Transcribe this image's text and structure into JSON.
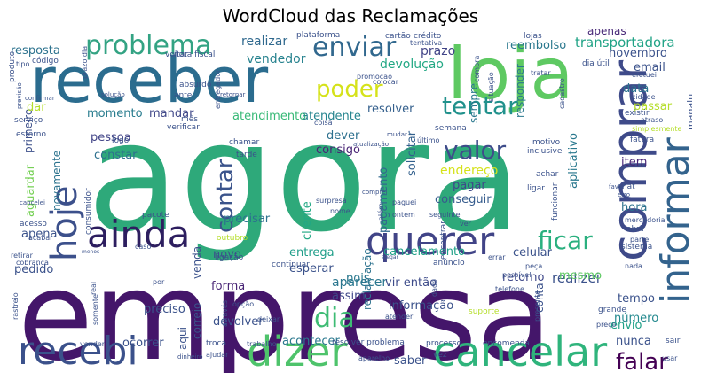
{
  "title": "WordCloud das Reclamações",
  "words": [
    {
      "text": "agora",
      "color": "#2ea97a"
    },
    {
      "text": "empresa",
      "color": "#44166a"
    },
    {
      "text": "receber",
      "color": "#2b6c8e"
    },
    {
      "text": "loja",
      "color": "#5ec962"
    },
    {
      "text": "comprar",
      "color": "#3e4a89"
    },
    {
      "text": "informar",
      "color": "#33638d"
    },
    {
      "text": "cancelar",
      "color": "#2fb47c"
    },
    {
      "text": "dizer",
      "color": "#4ec36b"
    },
    {
      "text": "recebi",
      "color": "#3b518b"
    },
    {
      "text": "querer",
      "color": "#414487"
    },
    {
      "text": "ainda",
      "color": "#2d1e5f"
    },
    {
      "text": "hoje",
      "color": "#3c508b"
    },
    {
      "text": "problema",
      "color": "#33a383"
    },
    {
      "text": "enviar",
      "color": "#31688e"
    },
    {
      "text": "poder",
      "color": "#d5e21a"
    },
    {
      "text": "tentar",
      "color": "#21918c"
    },
    {
      "text": "valor",
      "color": "#3e4c8a"
    },
    {
      "text": "contar",
      "color": "#3a538b"
    },
    {
      "text": "ficar",
      "color": "#2ab07f"
    },
    {
      "text": "dia",
      "color": "#3ebc74"
    },
    {
      "text": "falar",
      "color": "#440154"
    },
    {
      "text": "transportadora",
      "color": "#20a386"
    },
    {
      "text": "reembolso",
      "color": "#2a788e"
    },
    {
      "text": "realizar",
      "color": "#30698e"
    },
    {
      "text": "vendedor",
      "color": "#26828e"
    },
    {
      "text": "prazo",
      "color": "#414487"
    },
    {
      "text": "devolução",
      "color": "#22a884"
    },
    {
      "text": "resposta",
      "color": "#2c728e"
    },
    {
      "text": "apenas",
      "color": "#482878"
    },
    {
      "text": "atendimento",
      "color": "#38b977"
    },
    {
      "text": "atendente",
      "color": "#25848e"
    },
    {
      "text": "momento",
      "color": "#287c8e"
    },
    {
      "text": "mandar",
      "color": "#3f4788"
    },
    {
      "text": "primeiro",
      "color": "#3c4f8a"
    },
    {
      "text": "pessoa",
      "color": "#414487"
    },
    {
      "text": "constar",
      "color": "#2d708e"
    },
    {
      "text": "aguardar",
      "color": "#75d054"
    },
    {
      "text": "novamente",
      "color": "#2c738e"
    },
    {
      "text": "pedido",
      "color": "#3b528b"
    },
    {
      "text": "apena",
      "color": "#3b528b"
    },
    {
      "text": "resolver",
      "color": "#35608d"
    },
    {
      "text": "dever",
      "color": "#2d708e"
    },
    {
      "text": "consigo",
      "color": "#482475"
    },
    {
      "text": "pagamento",
      "color": "#31688e"
    },
    {
      "text": "cliente",
      "color": "#22a884"
    },
    {
      "text": "endereço",
      "color": "#d5e21a"
    },
    {
      "text": "pagar",
      "color": "#3e4989"
    },
    {
      "text": "conseguir",
      "color": "#365c8d"
    },
    {
      "text": "solicitar",
      "color": "#34618d"
    },
    {
      "text": "aplicativo",
      "color": "#2a788e"
    },
    {
      "text": "entrega",
      "color": "#1f9e89"
    },
    {
      "text": "esperar",
      "color": "#3b528b"
    },
    {
      "text": "aparecer",
      "color": "#2a768e"
    },
    {
      "text": "cancelamento",
      "color": "#1fa187"
    },
    {
      "text": "retorno",
      "color": "#3f4889"
    },
    {
      "text": "realizei",
      "color": "#3b528b"
    },
    {
      "text": "celular",
      "color": "#3b528b"
    },
    {
      "text": "item",
      "color": "#482677"
    },
    {
      "text": "hora",
      "color": "#2c728e"
    },
    {
      "text": "mesmo",
      "color": "#5ec962"
    },
    {
      "text": "tempo",
      "color": "#3b528b"
    },
    {
      "text": "número",
      "color": "#23898e"
    },
    {
      "text": "envio",
      "color": "#1fa187"
    },
    {
      "text": "nunca",
      "color": "#3b528b"
    },
    {
      "text": "vir então",
      "color": "#3e4c8a"
    },
    {
      "text": "pois",
      "color": "#2a788e"
    },
    {
      "text": "assim",
      "color": "#3f4788"
    },
    {
      "text": "informação",
      "color": "#3b528b"
    },
    {
      "text": "reclamação",
      "color": "#2c728e"
    },
    {
      "text": "forma",
      "color": "#482475"
    },
    {
      "text": "venda",
      "color": "#3b528b"
    },
    {
      "text": "devolver",
      "color": "#3b528b"
    },
    {
      "text": "preciso",
      "color": "#3b528b"
    },
    {
      "text": "correio",
      "color": "#3b528b"
    },
    {
      "text": "aqui",
      "color": "#3b528b"
    },
    {
      "text": "ocorrer",
      "color": "#3b528b"
    },
    {
      "text": "acontecer",
      "color": "#2a788e"
    },
    {
      "text": "saber",
      "color": "#3b528b"
    },
    {
      "text": "conta",
      "color": "#3b528b"
    },
    {
      "text": "precisar",
      "color": "#2c728e"
    },
    {
      "text": "novo",
      "color": "#3b528b"
    },
    {
      "text": "email",
      "color": "#3b528b"
    },
    {
      "text": "data",
      "color": "#2c728e"
    },
    {
      "text": "novembro",
      "color": "#3b528b"
    },
    {
      "text": "responder",
      "color": "#2a788e"
    },
    {
      "text": "passar",
      "color": "#b5de2b"
    },
    {
      "text": "sempre",
      "color": "#2a788e"
    },
    {
      "text": "dar",
      "color": "#b5de2b"
    },
    {
      "text": "magalu",
      "color": "#3b528b"
    },
    {
      "text": "semana",
      "color": "#3b528b"
    },
    {
      "text": "plataforma",
      "color": "#3b528b"
    },
    {
      "text": "cartão",
      "color": "#3b528b"
    },
    {
      "text": "crédito",
      "color": "#3b528b"
    },
    {
      "text": "código",
      "color": "#3b528b"
    },
    {
      "text": "absurdo",
      "color": "#3b528b"
    },
    {
      "text": "nota fiscal",
      "color": "#3b528b"
    },
    {
      "text": "produto",
      "color": "#3b528b"
    },
    {
      "text": "dia útil",
      "color": "#3b528b"
    },
    {
      "text": "lojas",
      "color": "#3b528b"
    },
    {
      "text": "tipo",
      "color": "#3b528b"
    },
    {
      "text": "voltar",
      "color": "#3b528b"
    },
    {
      "text": "entregador",
      "color": "#3b528b"
    },
    {
      "text": "promoção",
      "color": "#3b528b"
    },
    {
      "text": "colocar",
      "color": "#3b528b"
    },
    {
      "text": "tratar",
      "color": "#3b528b"
    },
    {
      "text": "situação",
      "color": "#3b528b"
    },
    {
      "text": "cadastro",
      "color": "#3b528b"
    },
    {
      "text": "efetuei",
      "color": "#3b528b"
    },
    {
      "text": "cidade",
      "color": "#3b528b"
    },
    {
      "text": "atraso",
      "color": "#3b528b"
    },
    {
      "text": "existir",
      "color": "#3b528b"
    },
    {
      "text": "simplesmente",
      "color": "#b5de2b"
    },
    {
      "text": "fatura",
      "color": "#3b528b"
    },
    {
      "text": "último",
      "color": "#3b528b"
    },
    {
      "text": "coisa",
      "color": "#3b528b"
    },
    {
      "text": "verificar",
      "color": "#3b528b"
    },
    {
      "text": "serviço",
      "color": "#3b528b"
    },
    {
      "text": "estorno",
      "color": "#3b528b"
    },
    {
      "text": "mês",
      "color": "#3b528b"
    },
    {
      "text": "logo",
      "color": "#3b528b"
    },
    {
      "text": "chamar",
      "color": "#3b528b"
    },
    {
      "text": "tarde",
      "color": "#3b528b"
    },
    {
      "text": "atualização",
      "color": "#3b528b"
    },
    {
      "text": "mudar",
      "color": "#3b528b"
    },
    {
      "text": "motivo",
      "color": "#3b528b"
    },
    {
      "text": "inclusive",
      "color": "#3b528b"
    },
    {
      "text": "achar",
      "color": "#3b528b"
    },
    {
      "text": "chat",
      "color": "#3b528b"
    },
    {
      "text": "favor",
      "color": "#3b528b"
    },
    {
      "text": "erro",
      "color": "#3b528b"
    },
    {
      "text": "abrir",
      "color": "#3b528b"
    },
    {
      "text": "parte",
      "color": "#3b528b"
    },
    {
      "text": "mercadoria",
      "color": "#3b528b"
    },
    {
      "text": "ligar",
      "color": "#3b528b"
    },
    {
      "text": "funcionar",
      "color": "#3b528b"
    },
    {
      "text": "surpresa",
      "color": "#3b528b"
    },
    {
      "text": "nome",
      "color": "#3b528b"
    },
    {
      "text": "pacote",
      "color": "#3b528b"
    },
    {
      "text": "consumidor",
      "color": "#3b528b"
    },
    {
      "text": "acesso",
      "color": "#3b528b"
    },
    {
      "text": "acabar",
      "color": "#3b528b"
    },
    {
      "text": "outubro",
      "color": "#b5de2b"
    },
    {
      "text": "ligação",
      "color": "#3b528b"
    },
    {
      "text": "continuar",
      "color": "#3b528b"
    },
    {
      "text": "paguei",
      "color": "#3b528b"
    },
    {
      "text": "ontem",
      "color": "#3b528b"
    },
    {
      "text": "seguinte",
      "color": "#3b528b"
    },
    {
      "text": "além",
      "color": "#3b528b"
    },
    {
      "text": "ver",
      "color": "#3b528b"
    },
    {
      "text": "cobrança",
      "color": "#3b528b"
    },
    {
      "text": "retirar",
      "color": "#3b528b"
    },
    {
      "text": "menos",
      "color": "#3b528b"
    },
    {
      "text": "rastreio",
      "color": "#3b528b"
    },
    {
      "text": "real",
      "color": "#3b528b"
    },
    {
      "text": "somente",
      "color": "#3b528b"
    },
    {
      "text": "através",
      "color": "#3b528b"
    },
    {
      "text": "opção",
      "color": "#3b528b"
    },
    {
      "text": "deixar",
      "color": "#3b528b"
    },
    {
      "text": "trabalho",
      "color": "#3b528b"
    },
    {
      "text": "ajudar",
      "color": "#3b528b"
    },
    {
      "text": "troca",
      "color": "#3b528b"
    },
    {
      "text": "dinheiro",
      "color": "#3b528b"
    },
    {
      "text": "vender",
      "color": "#3b528b"
    },
    {
      "text": "errar",
      "color": "#3b528b"
    },
    {
      "text": "anúncio",
      "color": "#3b528b"
    },
    {
      "text": "peça",
      "color": "#3b528b"
    },
    {
      "text": "possível",
      "color": "#3b528b"
    },
    {
      "text": "telefone",
      "color": "#3b528b"
    },
    {
      "text": "suporte",
      "color": "#b5de2b"
    },
    {
      "text": "atender",
      "color": "#3b528b"
    },
    {
      "text": "resolver problema",
      "color": "#3b528b"
    },
    {
      "text": "processo",
      "color": "#3b528b"
    },
    {
      "text": "encomenda",
      "color": "#3b528b"
    },
    {
      "text": "grande",
      "color": "#3b528b"
    },
    {
      "text": "preço",
      "color": "#3b528b"
    },
    {
      "text": "sair",
      "color": "#3b528b"
    },
    {
      "text": "usar",
      "color": "#3b528b"
    },
    {
      "text": "aparelho",
      "color": "#3b528b"
    },
    {
      "text": "sistema",
      "color": "#3b528b"
    },
    {
      "text": "nada",
      "color": "#3b528b"
    },
    {
      "text": "alegar",
      "color": "#3b528b"
    },
    {
      "text": "dado",
      "color": "#3b528b"
    },
    {
      "text": "por",
      "color": "#3b528b"
    },
    {
      "text": "caso",
      "color": "#3b528b"
    },
    {
      "text": "cancelei",
      "color": "#3b528b"
    },
    {
      "text": "previsão",
      "color": "#3b528b"
    },
    {
      "text": "confirmar",
      "color": "#3b528b"
    },
    {
      "text": "solução",
      "color": "#3b528b"
    },
    {
      "text": "retornar",
      "color": "#3b528b"
    },
    {
      "text": "tentativa",
      "color": "#3b528b"
    },
    {
      "text": "prazo dia",
      "color": "#3b528b"
    },
    {
      "text": "presente",
      "color": "#3b528b"
    },
    {
      "text": "vez",
      "color": "#3b528b"
    },
    {
      "text": "ante",
      "color": "#3b528b"
    },
    {
      "text": "compra",
      "color": "#3b528b"
    },
    {
      "text": "comprei",
      "color": "#3b528b"
    },
    {
      "text": "encontrar",
      "color": "#3b528b"
    }
  ]
}
